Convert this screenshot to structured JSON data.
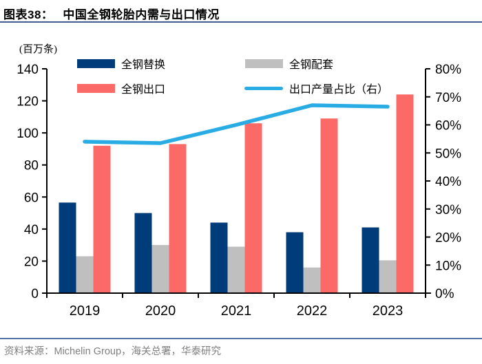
{
  "header": {
    "prefix": "图表38：",
    "title": "中国全钢轮胎内需与出口情况"
  },
  "chart_data": {
    "type": "bar",
    "title": "中国全钢轮胎内需与出口情况",
    "unit_label": "(百万条)",
    "categories": [
      "2019",
      "2020",
      "2021",
      "2022",
      "2023"
    ],
    "series": [
      {
        "name": "全钢替换",
        "color": "#003b7a",
        "values": [
          56.5,
          50,
          44,
          38,
          41
        ]
      },
      {
        "name": "全钢配套",
        "color": "#bfbfbf",
        "values": [
          23,
          30,
          29,
          16,
          20.5
        ]
      },
      {
        "name": "全钢出口",
        "color": "#fb6a66",
        "values": [
          92,
          93,
          106,
          109,
          124
        ]
      }
    ],
    "line_series": {
      "name": "出口产量占比（右）",
      "color": "#29ace3",
      "axis": "right",
      "unit": "%",
      "values": [
        54,
        53.5,
        60,
        67,
        66.5
      ]
    },
    "left_axis": {
      "min": 0,
      "max": 140,
      "step": 20,
      "tick_labels": [
        "0",
        "20",
        "40",
        "60",
        "80",
        "100",
        "120",
        "140"
      ]
    },
    "right_axis": {
      "min": 0,
      "max": 80,
      "step": 10,
      "tick_labels": [
        "0%",
        "10%",
        "20%",
        "30%",
        "40%",
        "50%",
        "60%",
        "70%",
        "80%"
      ]
    },
    "legend_position": "top",
    "grid": false
  },
  "footer": {
    "source": "资料来源：Michelin Group，海关总署，华泰研究"
  }
}
